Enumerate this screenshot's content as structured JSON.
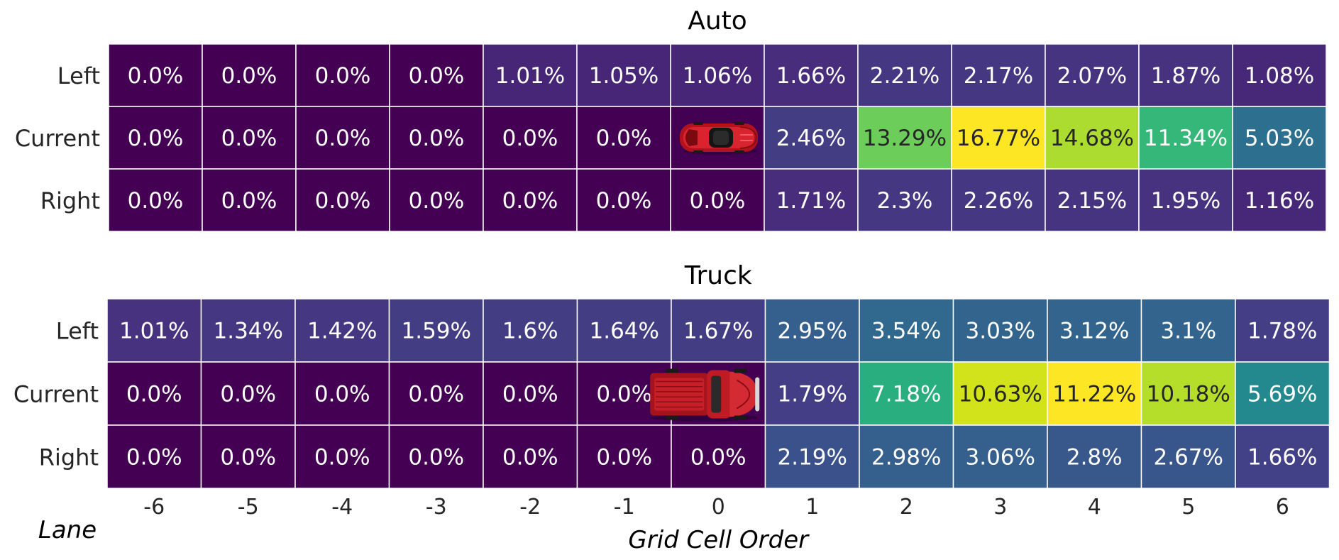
{
  "chart_data": [
    {
      "type": "heatmap",
      "title": "Auto",
      "rows": [
        "Left",
        "Current",
        "Right"
      ],
      "columns": [
        "-6",
        "-5",
        "-4",
        "-3",
        "-2",
        "-1",
        "0",
        "1",
        "2",
        "3",
        "4",
        "5",
        "6"
      ],
      "values": [
        [
          0.0,
          0.0,
          0.0,
          0.0,
          1.01,
          1.05,
          1.06,
          1.66,
          2.21,
          2.17,
          2.07,
          1.87,
          1.08
        ],
        [
          0.0,
          0.0,
          0.0,
          0.0,
          0.0,
          0.0,
          null,
          2.46,
          13.29,
          16.77,
          14.68,
          11.34,
          5.03
        ],
        [
          0.0,
          0.0,
          0.0,
          0.0,
          0.0,
          0.0,
          0.0,
          1.71,
          2.3,
          2.26,
          2.15,
          1.95,
          1.16
        ]
      ],
      "labels": [
        [
          "0.0%",
          "0.0%",
          "0.0%",
          "0.0%",
          "1.01%",
          "1.05%",
          "1.06%",
          "1.66%",
          "2.21%",
          "2.17%",
          "2.07%",
          "1.87%",
          "1.08%"
        ],
        [
          "0.0%",
          "0.0%",
          "0.0%",
          "0.0%",
          "0.0%",
          "0.0%",
          "",
          "2.46%",
          "13.29%",
          "16.77%",
          "14.68%",
          "11.34%",
          "5.03%"
        ],
        [
          "0.0%",
          "0.0%",
          "0.0%",
          "0.0%",
          "0.0%",
          "0.0%",
          "0.0%",
          "1.71%",
          "2.3%",
          "2.26%",
          "2.15%",
          "1.95%",
          "1.16%"
        ]
      ],
      "colors": [
        [
          "#440154",
          "#440154",
          "#440154",
          "#440154",
          "#482677",
          "#482677",
          "#482677",
          "#472d7b",
          "#453781",
          "#453781",
          "#463480",
          "#46327e",
          "#472878"
        ],
        [
          "#440154",
          "#440154",
          "#440154",
          "#440154",
          "#440154",
          "#440154",
          "#440154",
          "#433d84",
          "#6ccd5a",
          "#fde725",
          "#addc30",
          "#35b779",
          "#2d6f8e"
        ],
        [
          "#440154",
          "#440154",
          "#440154",
          "#440154",
          "#440154",
          "#440154",
          "#440154",
          "#472d7b",
          "#453781",
          "#453781",
          "#463480",
          "#46327e",
          "#472878"
        ]
      ],
      "vehicle_marker": {
        "row": "Current",
        "column": "0",
        "icon": "red-car-icon"
      }
    },
    {
      "type": "heatmap",
      "title": "Truck",
      "rows": [
        "Left",
        "Current",
        "Right"
      ],
      "columns": [
        "-6",
        "-5",
        "-4",
        "-3",
        "-2",
        "-1",
        "0",
        "1",
        "2",
        "3",
        "4",
        "5",
        "6"
      ],
      "values": [
        [
          1.01,
          1.34,
          1.42,
          1.59,
          1.6,
          1.64,
          1.67,
          2.95,
          3.54,
          3.03,
          3.12,
          3.1,
          1.78
        ],
        [
          0.0,
          0.0,
          0.0,
          0.0,
          0.0,
          0.0,
          null,
          1.79,
          7.18,
          10.63,
          11.22,
          10.18,
          5.69
        ],
        [
          0.0,
          0.0,
          0.0,
          0.0,
          0.0,
          0.0,
          0.0,
          2.19,
          2.98,
          3.06,
          2.8,
          2.67,
          1.66
        ]
      ],
      "labels": [
        [
          "1.01%",
          "1.34%",
          "1.42%",
          "1.59%",
          "1.6%",
          "1.64%",
          "1.67%",
          "2.95%",
          "3.54%",
          "3.03%",
          "3.12%",
          "3.1%",
          "1.78%"
        ],
        [
          "0.0%",
          "0.0%",
          "0.0%",
          "0.0%",
          "0.0%",
          "0.0%",
          "",
          "1.79%",
          "7.18%",
          "10.63%",
          "11.22%",
          "10.18%",
          "5.69%"
        ],
        [
          "0.0%",
          "0.0%",
          "0.0%",
          "0.0%",
          "0.0%",
          "0.0%",
          "0.0%",
          "2.19%",
          "2.98%",
          "3.06%",
          "2.8%",
          "2.67%",
          "1.66%"
        ]
      ],
      "colors": [
        [
          "#46327e",
          "#453781",
          "#453781",
          "#433d84",
          "#433d84",
          "#433d84",
          "#433d84",
          "#355f8d",
          "#31688e",
          "#32648e",
          "#32648e",
          "#32648e",
          "#433e85"
        ],
        [
          "#440154",
          "#440154",
          "#440154",
          "#440154",
          "#440154",
          "#440154",
          "#440154",
          "#433e85",
          "#29af7f",
          "#d2e21b",
          "#fde725",
          "#b5de2b",
          "#23898e"
        ],
        [
          "#440154",
          "#440154",
          "#440154",
          "#440154",
          "#440154",
          "#440154",
          "#440154",
          "#3b518b",
          "#355f8d",
          "#355f8d",
          "#38588c",
          "#39568c",
          "#424086"
        ]
      ],
      "vehicle_marker": {
        "row": "Current",
        "column": "0",
        "icon": "red-truck-icon"
      }
    }
  ],
  "axes": {
    "xlabel": "Grid Cell Order",
    "ylabel": "Lane",
    "xticks": [
      "-6",
      "-5",
      "-4",
      "-3",
      "-2",
      "-1",
      "0",
      "1",
      "2",
      "3",
      "4",
      "5",
      "6"
    ]
  },
  "text_colors": {
    "light": "#ffffff",
    "dark": "#262626"
  }
}
